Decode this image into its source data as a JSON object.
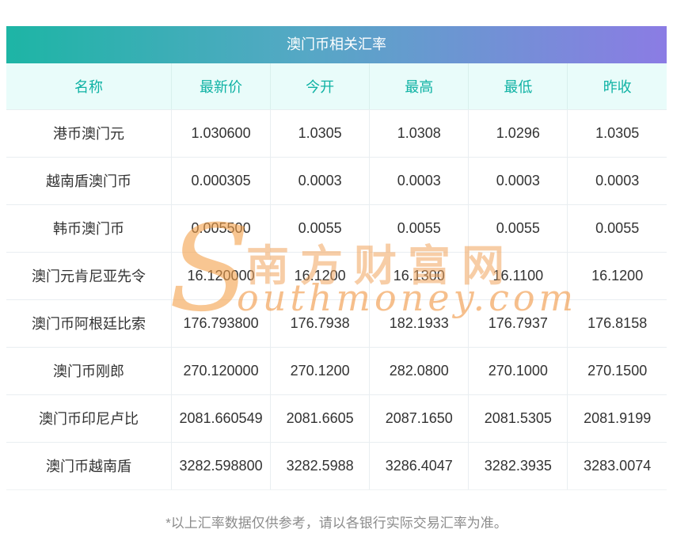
{
  "title": "澳门币相关汇率",
  "table": {
    "headers": [
      "名称",
      "最新价",
      "今开",
      "最高",
      "最低",
      "昨收"
    ],
    "rows": [
      [
        "港币澳门元",
        "1.030600",
        "1.0305",
        "1.0308",
        "1.0296",
        "1.0305"
      ],
      [
        "越南盾澳门币",
        "0.000305",
        "0.0003",
        "0.0003",
        "0.0003",
        "0.0003"
      ],
      [
        "韩币澳门币",
        "0.005500",
        "0.0055",
        "0.0055",
        "0.0055",
        "0.0055"
      ],
      [
        "澳门元肯尼亚先令",
        "16.120000",
        "16.1200",
        "16.1300",
        "16.1100",
        "16.1200"
      ],
      [
        "澳门币阿根廷比索",
        "176.793800",
        "176.7938",
        "182.1933",
        "176.7937",
        "176.8158"
      ],
      [
        "澳门币刚郎",
        "270.120000",
        "270.1200",
        "282.0800",
        "270.1000",
        "270.1500"
      ],
      [
        "澳门币印尼卢比",
        "2081.660549",
        "2081.6605",
        "2087.1650",
        "2081.5305",
        "2081.9199"
      ],
      [
        "澳门币越南盾",
        "3282.598800",
        "3282.5988",
        "3286.4047",
        "3282.3935",
        "3283.0074"
      ]
    ]
  },
  "watermark": {
    "cn": "南方财富网",
    "en_initial": "S",
    "en_rest": "outhmoney.com"
  },
  "footer": "*以上汇率数据仅供参考，请以各银行实际交易汇率为准。",
  "colors": {
    "title_gradient_start": "#1db5a5",
    "title_gradient_end": "#8b7ce4",
    "header_bg": "#e9fcfa",
    "header_text": "#0fb2a4",
    "body_text": "#333333",
    "border": "#e9eef1",
    "watermark_orange": "#f0a44a",
    "footer_text": "#8c8c8c"
  }
}
